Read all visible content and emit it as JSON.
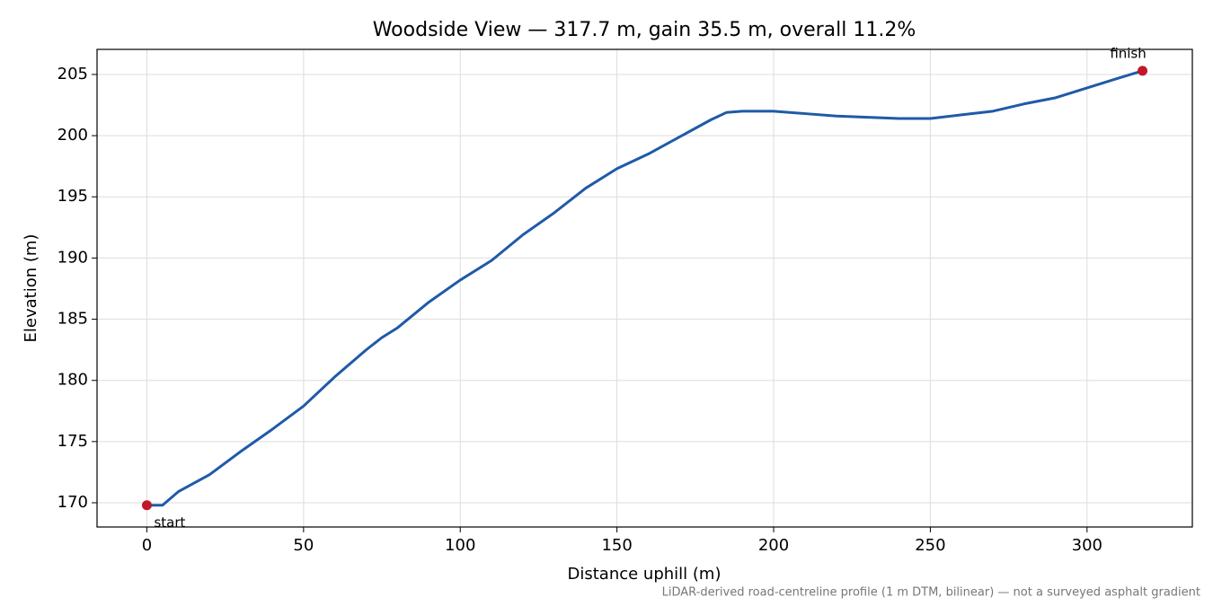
{
  "chart_data": {
    "type": "line",
    "title": "Woodside View — 317.7 m, gain 35.5 m, overall 11.2%",
    "xlabel": "Distance uphill (m)",
    "ylabel": "Elevation (m)",
    "note": "LiDAR-derived road-centreline profile (1 m DTM, bilinear) — not a surveyed asphalt gradient",
    "x": [
      0,
      5,
      10,
      20,
      30,
      40,
      50,
      60,
      70,
      75,
      80,
      90,
      100,
      110,
      120,
      130,
      140,
      150,
      160,
      170,
      180,
      185,
      190,
      200,
      210,
      220,
      230,
      240,
      250,
      260,
      270,
      280,
      290,
      300,
      310,
      317.7
    ],
    "series": [
      {
        "color": "#1f5aa8",
        "values": [
          169.8,
          169.8,
          170.9,
          172.3,
          174.2,
          176.0,
          177.9,
          180.3,
          182.5,
          183.5,
          184.3,
          186.4,
          188.2,
          189.8,
          191.9,
          193.7,
          195.7,
          197.3,
          198.5,
          199.9,
          201.3,
          201.9,
          202.0,
          202.0,
          201.8,
          201.6,
          201.5,
          201.4,
          201.4,
          201.7,
          202.0,
          202.6,
          203.1,
          203.9,
          204.7,
          205.3
        ]
      }
    ],
    "points": [
      {
        "label": "start",
        "x": 0,
        "y": 169.8,
        "color": "#c0182a"
      },
      {
        "label": "finish",
        "x": 317.7,
        "y": 205.3,
        "color": "#c0182a"
      }
    ],
    "xlim": [
      -15.9,
      333.6
    ],
    "ylim": [
      168.02,
      207.05
    ],
    "xticks": [
      0,
      50,
      100,
      150,
      200,
      250,
      300
    ],
    "yticks": [
      170,
      175,
      180,
      185,
      190,
      195,
      200,
      205
    ],
    "grid": true
  }
}
